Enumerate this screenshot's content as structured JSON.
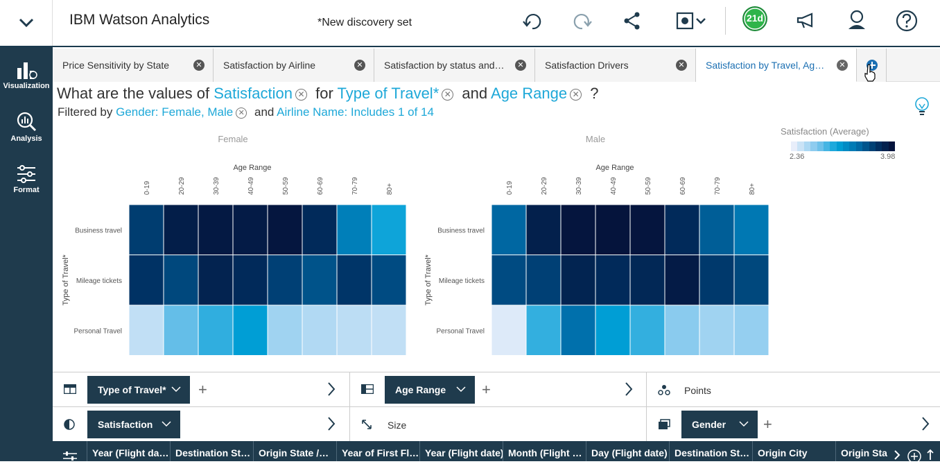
{
  "app": {
    "title": "IBM Watson Analytics",
    "document_title": "*New discovery set",
    "trial_badge": "21d"
  },
  "toolbar": {
    "icons": [
      "undo-icon",
      "redo-icon",
      "share-icon",
      "display-mode-icon",
      "trial-days-badge",
      "announcements-icon",
      "user-icon",
      "help-icon"
    ]
  },
  "leftnav": [
    {
      "label": "Visualization",
      "icon": "bar-chart-icon"
    },
    {
      "label": "Analysis",
      "icon": "magnifier-chart-icon"
    },
    {
      "label": "Format",
      "icon": "sliders-icon"
    }
  ],
  "tabs": [
    {
      "label": "Price Sensitivity by State",
      "active": false
    },
    {
      "label": "Satisfaction by Airline",
      "active": false
    },
    {
      "label": "Satisfaction by status and…",
      "active": false
    },
    {
      "label": "Satisfaction Drivers",
      "active": false
    },
    {
      "label": "Satisfaction by Travel, Ag…",
      "active": true
    }
  ],
  "question": {
    "prefix": "What are the values of",
    "measure": "Satisfaction",
    "for": "for",
    "dim1": "Type of Travel*",
    "and": "and",
    "dim2": "Age Range",
    "suffix": "?"
  },
  "filter": {
    "prefix": "Filtered by",
    "filter1": "Gender: Female, Male",
    "and": "and",
    "filter2": "Airline Name: Includes 1 of 14"
  },
  "legend": {
    "title": "Satisfaction (Average)",
    "min": "2.36",
    "max": "3.98"
  },
  "chart_data": {
    "type": "heatmap",
    "measure": "Satisfaction (Average)",
    "facets": [
      "Female",
      "Male"
    ],
    "x_label": "Age Range",
    "y_label": "Type of Travel*",
    "x": [
      "0-19",
      "20-29",
      "30-39",
      "40-49",
      "50-59",
      "60-69",
      "70-79",
      "80+"
    ],
    "y": [
      "Business travel",
      "Mileage tickets",
      "Personal Travel"
    ],
    "value_range": [
      2.36,
      3.98
    ],
    "values": {
      "Female": [
        [
          3.68,
          3.9,
          3.94,
          3.92,
          3.96,
          3.8,
          3.3,
          3.05
        ],
        [
          3.74,
          3.62,
          3.86,
          3.8,
          3.66,
          3.56,
          3.72,
          3.6
        ],
        [
          2.5,
          2.82,
          2.96,
          3.1,
          2.62,
          2.56,
          2.52,
          2.5
        ]
      ],
      "Male": [
        [
          3.45,
          3.88,
          3.97,
          3.98,
          3.97,
          3.8,
          3.5,
          3.35
        ],
        [
          3.6,
          3.66,
          3.85,
          3.8,
          3.82,
          3.92,
          3.7,
          3.62
        ],
        [
          2.4,
          2.95,
          3.4,
          3.1,
          2.95,
          2.7,
          2.62,
          2.66
        ]
      ]
    }
  },
  "slots": {
    "row1": {
      "columns_pill": "Type of Travel*",
      "rows_pill": "Age Range",
      "points_label": "Points"
    },
    "row2": {
      "color_pill": "Satisfaction",
      "size_label": "Size",
      "repeat_pill": "Gender"
    }
  },
  "data_columns": [
    "Year (Flight da…",
    "Destination St…",
    "Origin State /…",
    "Year of First Fl…",
    "Year (Flight date)",
    "Month (Flight …",
    "Day (Flight date)",
    "Destination St…",
    "Origin City",
    "Origin State"
  ]
}
